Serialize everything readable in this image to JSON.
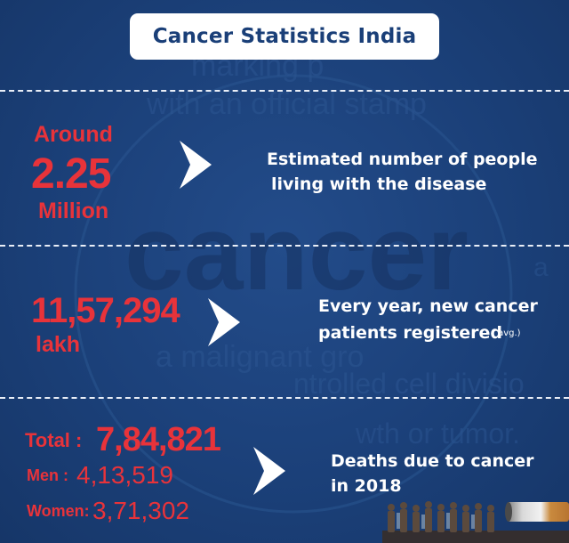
{
  "title": "Cancer Statistics India",
  "section1": {
    "prefix": "Around",
    "value": "2.25",
    "unit": "Million",
    "desc_line1": "Estimated number of people",
    "desc_line2": "living with the disease"
  },
  "section2": {
    "value": "11,57,294",
    "unit": "lakh",
    "desc_line1": "Every year, new cancer",
    "desc_line2": "patients registered",
    "note": "( avg.)"
  },
  "section3": {
    "total_label": "Total :",
    "total_value": "7,84,821",
    "men_label": "Men :",
    "men_value": "4,13,519",
    "women_label": "Women:",
    "women_value": "3,71,302",
    "desc_line1": "Deaths due to cancer",
    "desc_line2": "in 2018"
  },
  "colors": {
    "background": "#1a3f78",
    "accent_red": "#e8333a",
    "text_white": "#ffffff"
  },
  "icons": [
    "chevron-right-icon",
    "crowd-cigarette-illustration"
  ]
}
